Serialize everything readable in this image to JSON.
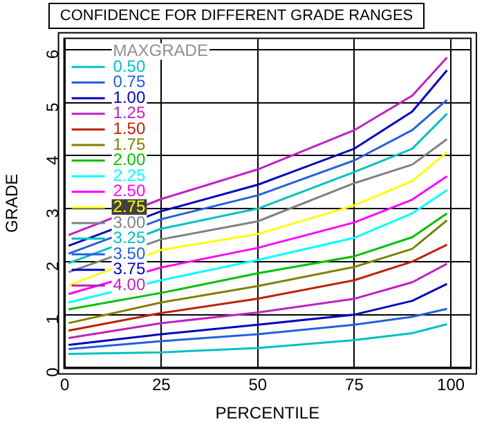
{
  "chart_data": {
    "type": "line",
    "title": "CONFIDENCE FOR DIFFERENT GRADE RANGES",
    "xlabel": "PERCENTILE",
    "ylabel": "GRADE",
    "legend_title": "MAXGRADE",
    "legend": "top left",
    "grid": true,
    "marker": "none",
    "line_style": "solid",
    "x": [
      1,
      25,
      50,
      75,
      90,
      99
    ],
    "xlim": [
      0,
      105
    ],
    "xticks": [
      0,
      25,
      50,
      75,
      100
    ],
    "ylim": [
      0,
      6.2
    ],
    "yticks": [
      0,
      1,
      2,
      3,
      4,
      5,
      6
    ],
    "series": [
      {
        "name": "0.50",
        "color": "#00c0c0",
        "values": [
          0.26,
          0.29,
          0.37,
          0.52,
          0.65,
          0.82
        ]
      },
      {
        "name": "0.75",
        "color": "#2060e0",
        "values": [
          0.35,
          0.5,
          0.63,
          0.81,
          0.96,
          1.11
        ]
      },
      {
        "name": "1.00",
        "color": "#0000c0",
        "values": [
          0.43,
          0.63,
          0.81,
          1.0,
          1.26,
          1.58
        ]
      },
      {
        "name": "1.25",
        "color": "#c020c0",
        "values": [
          0.56,
          0.84,
          1.04,
          1.3,
          1.61,
          1.96
        ]
      },
      {
        "name": "1.50",
        "color": "#c02000",
        "values": [
          0.7,
          1.03,
          1.3,
          1.65,
          2.0,
          2.32
        ]
      },
      {
        "name": "1.75",
        "color": "#808000",
        "values": [
          0.84,
          1.23,
          1.54,
          1.9,
          2.24,
          2.78
        ]
      },
      {
        "name": "2.00",
        "color": "#00c000",
        "values": [
          1.1,
          1.41,
          1.78,
          2.1,
          2.46,
          2.91
        ]
      },
      {
        "name": "2.25",
        "color": "#00ffff",
        "values": [
          1.23,
          1.65,
          2.03,
          2.45,
          2.91,
          3.35
        ]
      },
      {
        "name": "2.50",
        "color": "#ff00ff",
        "values": [
          1.39,
          1.89,
          2.26,
          2.74,
          3.17,
          3.61
        ]
      },
      {
        "name": "2.75",
        "color": "#ffff00",
        "values": [
          1.55,
          2.22,
          2.52,
          3.06,
          3.52,
          4.06
        ]
      },
      {
        "name": "3.00",
        "color": "#808080",
        "values": [
          1.8,
          2.42,
          2.76,
          3.48,
          3.83,
          4.31
        ]
      },
      {
        "name": "3.25",
        "color": "#00c0c0",
        "values": [
          1.97,
          2.62,
          3.0,
          3.69,
          4.13,
          4.79
        ]
      },
      {
        "name": "3.50",
        "color": "#2060e0",
        "values": [
          2.15,
          2.8,
          3.25,
          3.91,
          4.48,
          5.05
        ]
      },
      {
        "name": "3.75",
        "color": "#0000c0",
        "values": [
          2.3,
          2.95,
          3.45,
          4.13,
          4.83,
          5.61
        ]
      },
      {
        "name": "4.00",
        "color": "#c020c0",
        "values": [
          2.5,
          3.18,
          3.74,
          4.48,
          5.13,
          5.85
        ]
      }
    ]
  }
}
